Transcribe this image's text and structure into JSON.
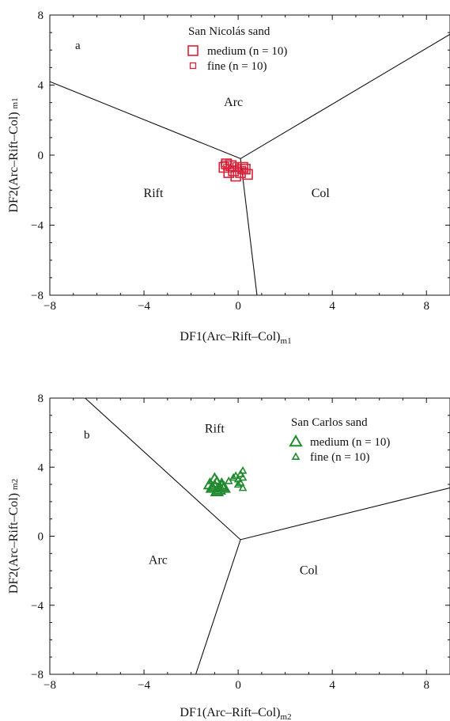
{
  "chart_data": [
    {
      "type": "scatter",
      "panel": "a",
      "legend_title": "San Nicolás sand",
      "legend_position": "top-right",
      "xlim": [
        -8,
        9
      ],
      "ylim": [
        -8,
        8
      ],
      "x_ticks": [
        "-8",
        "-4",
        "0",
        "4",
        "8"
      ],
      "y_ticks": [
        "8",
        "4",
        "0",
        "-4",
        "-8"
      ],
      "xlabel_main": "DF1(Arc–Rift–Col)",
      "xlabel_sub": "m1",
      "ylabel_main": "DF2(Arc–Rift–Col)",
      "ylabel_sub": "m1",
      "grid": false,
      "regions": [
        {
          "label": "Arc",
          "x": -0.2,
          "y": 2.8
        },
        {
          "label": "Rift",
          "x": -3.6,
          "y": -2.4
        },
        {
          "label": "Col",
          "x": 3.5,
          "y": -2.4
        }
      ],
      "boundaries": [
        {
          "from": [
            -8,
            4.2
          ],
          "to": [
            0.1,
            -0.2
          ]
        },
        {
          "from": [
            0.1,
            -0.2
          ],
          "to": [
            9,
            6.9
          ]
        },
        {
          "from": [
            0.1,
            -0.2
          ],
          "to": [
            0.8,
            -8
          ]
        }
      ],
      "series": [
        {
          "name": "medium (n = 10)",
          "marker": "square-large",
          "color": "#d9213a",
          "points": [
            [
              -0.5,
              -0.5
            ],
            [
              -0.3,
              -0.6
            ],
            [
              -0.6,
              -0.7
            ],
            [
              -0.2,
              -0.9
            ],
            [
              0.3,
              -0.8
            ],
            [
              0.4,
              -1.1
            ],
            [
              0.1,
              -1.0
            ],
            [
              -0.1,
              -1.2
            ],
            [
              0.2,
              -0.7
            ],
            [
              -0.4,
              -1.0
            ]
          ]
        },
        {
          "name": "fine (n = 10)",
          "marker": "square-small",
          "color": "#d9213a",
          "points": [
            [
              -0.6,
              -0.5
            ],
            [
              -0.4,
              -0.4
            ],
            [
              -0.2,
              -0.5
            ],
            [
              -0.5,
              -0.7
            ],
            [
              0.0,
              -0.7
            ],
            [
              0.2,
              -0.8
            ],
            [
              -0.3,
              -0.8
            ],
            [
              0.1,
              -0.9
            ],
            [
              0.3,
              -0.9
            ],
            [
              -0.1,
              -0.6
            ]
          ]
        }
      ]
    },
    {
      "type": "scatter",
      "panel": "b",
      "legend_title": "San Carlos sand",
      "legend_position": "top-right",
      "xlim": [
        -8,
        9
      ],
      "ylim": [
        -8,
        8
      ],
      "x_ticks": [
        "-8",
        "-4",
        "0",
        "4",
        "8"
      ],
      "y_ticks": [
        "8",
        "4",
        "0",
        "-4",
        "-8"
      ],
      "xlabel_main": "DF1(Arc–Rift–Col)",
      "xlabel_sub": "m2",
      "ylabel_main": "DF2(Arc–Rift–Col)",
      "ylabel_sub": "m2",
      "grid": false,
      "regions": [
        {
          "label": "Rift",
          "x": -1.0,
          "y": 6.0
        },
        {
          "label": "Arc",
          "x": -3.4,
          "y": -1.6
        },
        {
          "label": "Col",
          "x": 3.0,
          "y": -2.2
        }
      ],
      "boundaries": [
        {
          "from": [
            -6.5,
            8
          ],
          "to": [
            0.1,
            -0.2
          ]
        },
        {
          "from": [
            0.1,
            -0.2
          ],
          "to": [
            9,
            2.8
          ]
        },
        {
          "from": [
            0.1,
            -0.2
          ],
          "to": [
            -1.8,
            -8
          ]
        }
      ],
      "series": [
        {
          "name": "medium (n = 10)",
          "marker": "triangle-large",
          "color": "#1f8a2e",
          "points": [
            [
              -1.2,
              3.0
            ],
            [
              -1.0,
              3.3
            ],
            [
              -0.9,
              3.1
            ],
            [
              -0.7,
              2.9
            ],
            [
              -1.1,
              2.8
            ],
            [
              -0.8,
              2.7
            ],
            [
              -0.6,
              2.8
            ],
            [
              -1.0,
              2.9
            ],
            [
              -0.9,
              2.6
            ],
            [
              -0.7,
              3.0
            ]
          ]
        },
        {
          "name": "fine (n = 10)",
          "marker": "triangle-small",
          "color": "#1f8a2e",
          "points": [
            [
              -0.4,
              3.2
            ],
            [
              -0.2,
              3.4
            ],
            [
              0.0,
              3.3
            ],
            [
              0.1,
              3.6
            ],
            [
              0.2,
              3.8
            ],
            [
              0.1,
              3.1
            ],
            [
              0.2,
              2.8
            ],
            [
              -0.1,
              3.5
            ],
            [
              0.0,
              3.0
            ],
            [
              0.2,
              3.4
            ]
          ]
        }
      ]
    }
  ]
}
